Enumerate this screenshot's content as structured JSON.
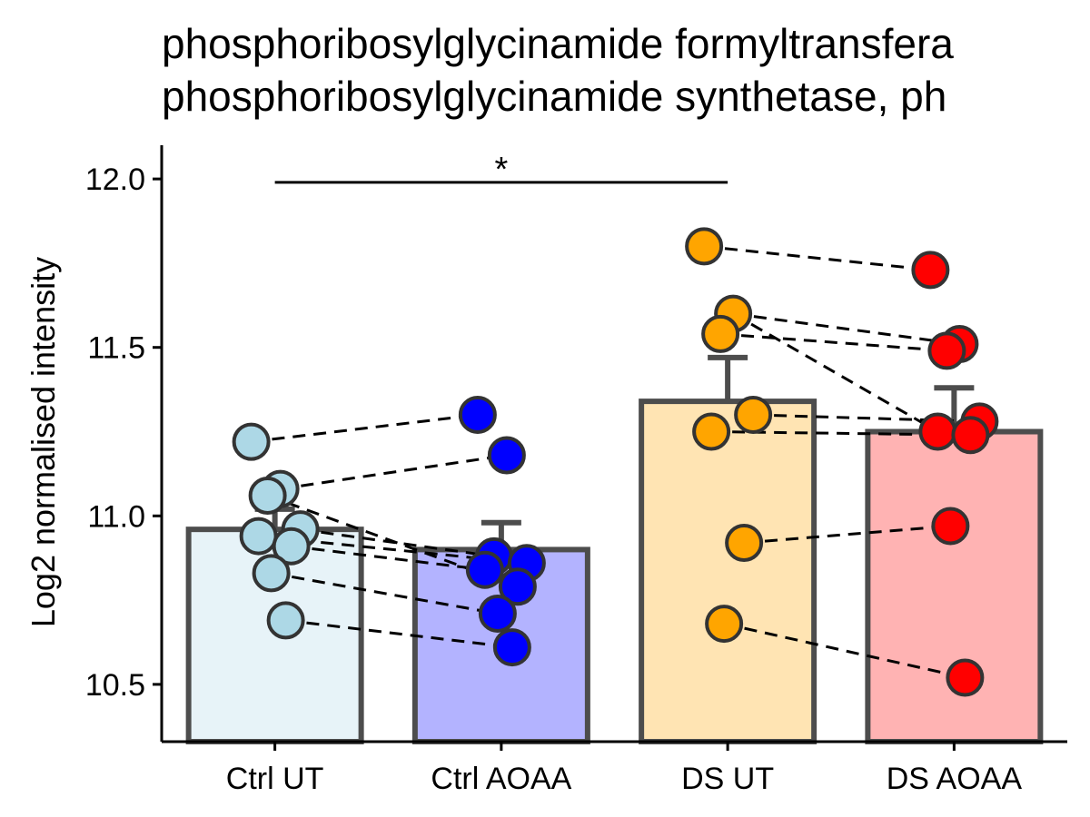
{
  "chart_data": {
    "type": "bar",
    "title_lines": [
      "phosphoribosylglycinamide formyltransfera",
      "phosphoribosylglycinamide synthetase, ph"
    ],
    "xlabel": "",
    "ylabel": "Log2 normalised intensity",
    "ylim": [
      10.33,
      12.1
    ],
    "yticks": [
      10.5,
      11.0,
      11.5,
      12.0
    ],
    "ytick_labels": [
      "10.5",
      "11.0",
      "11.5",
      "12.0"
    ],
    "categories": [
      "Ctrl UT",
      "Ctrl AOAA",
      "DS UT",
      "DS AOAA"
    ],
    "bar_colors": [
      "#e7f3f8",
      "#b3b3ff",
      "#ffe4b3",
      "#ffb3b3"
    ],
    "point_colors": [
      "#add8e6",
      "#0000ff",
      "#ffa500",
      "#ff0000"
    ],
    "bar_values": [
      10.96,
      10.9,
      11.34,
      11.25
    ],
    "error_upper": [
      11.02,
      10.98,
      11.47,
      11.38
    ],
    "points": [
      [
        11.22,
        11.08,
        11.06,
        10.96,
        10.94,
        10.91,
        10.83,
        10.69
      ],
      [
        11.3,
        11.18,
        10.88,
        10.86,
        10.84,
        10.79,
        10.71,
        10.61
      ],
      [
        11.8,
        11.6,
        11.54,
        11.3,
        11.25,
        10.92,
        10.68
      ],
      [
        11.73,
        11.51,
        11.49,
        11.28,
        11.25,
        11.24,
        10.97,
        10.52
      ]
    ],
    "pairs_ut_aoaa": [
      [
        [
          0,
          0
        ],
        [
          1,
          0
        ]
      ],
      [
        [
          0,
          1
        ],
        [
          1,
          1
        ]
      ],
      [
        [
          0,
          2
        ],
        [
          1,
          5
        ]
      ],
      [
        [
          0,
          3
        ],
        [
          1,
          2
        ]
      ],
      [
        [
          0,
          4
        ],
        [
          1,
          3
        ]
      ],
      [
        [
          0,
          5
        ],
        [
          1,
          4
        ]
      ],
      [
        [
          0,
          6
        ],
        [
          1,
          6
        ]
      ],
      [
        [
          0,
          7
        ],
        [
          1,
          7
        ]
      ],
      [
        [
          2,
          0
        ],
        [
          3,
          0
        ]
      ],
      [
        [
          2,
          1
        ],
        [
          3,
          1
        ]
      ],
      [
        [
          2,
          2
        ],
        [
          3,
          2
        ]
      ],
      [
        [
          2,
          1
        ],
        [
          3,
          4
        ]
      ],
      [
        [
          2,
          3
        ],
        [
          3,
          3
        ]
      ],
      [
        [
          2,
          4
        ],
        [
          3,
          5
        ]
      ],
      [
        [
          2,
          5
        ],
        [
          3,
          6
        ]
      ],
      [
        [
          2,
          6
        ],
        [
          3,
          7
        ]
      ]
    ],
    "significance": {
      "from_category": 0,
      "to_category": 2,
      "y": 11.99,
      "label": "*"
    }
  }
}
